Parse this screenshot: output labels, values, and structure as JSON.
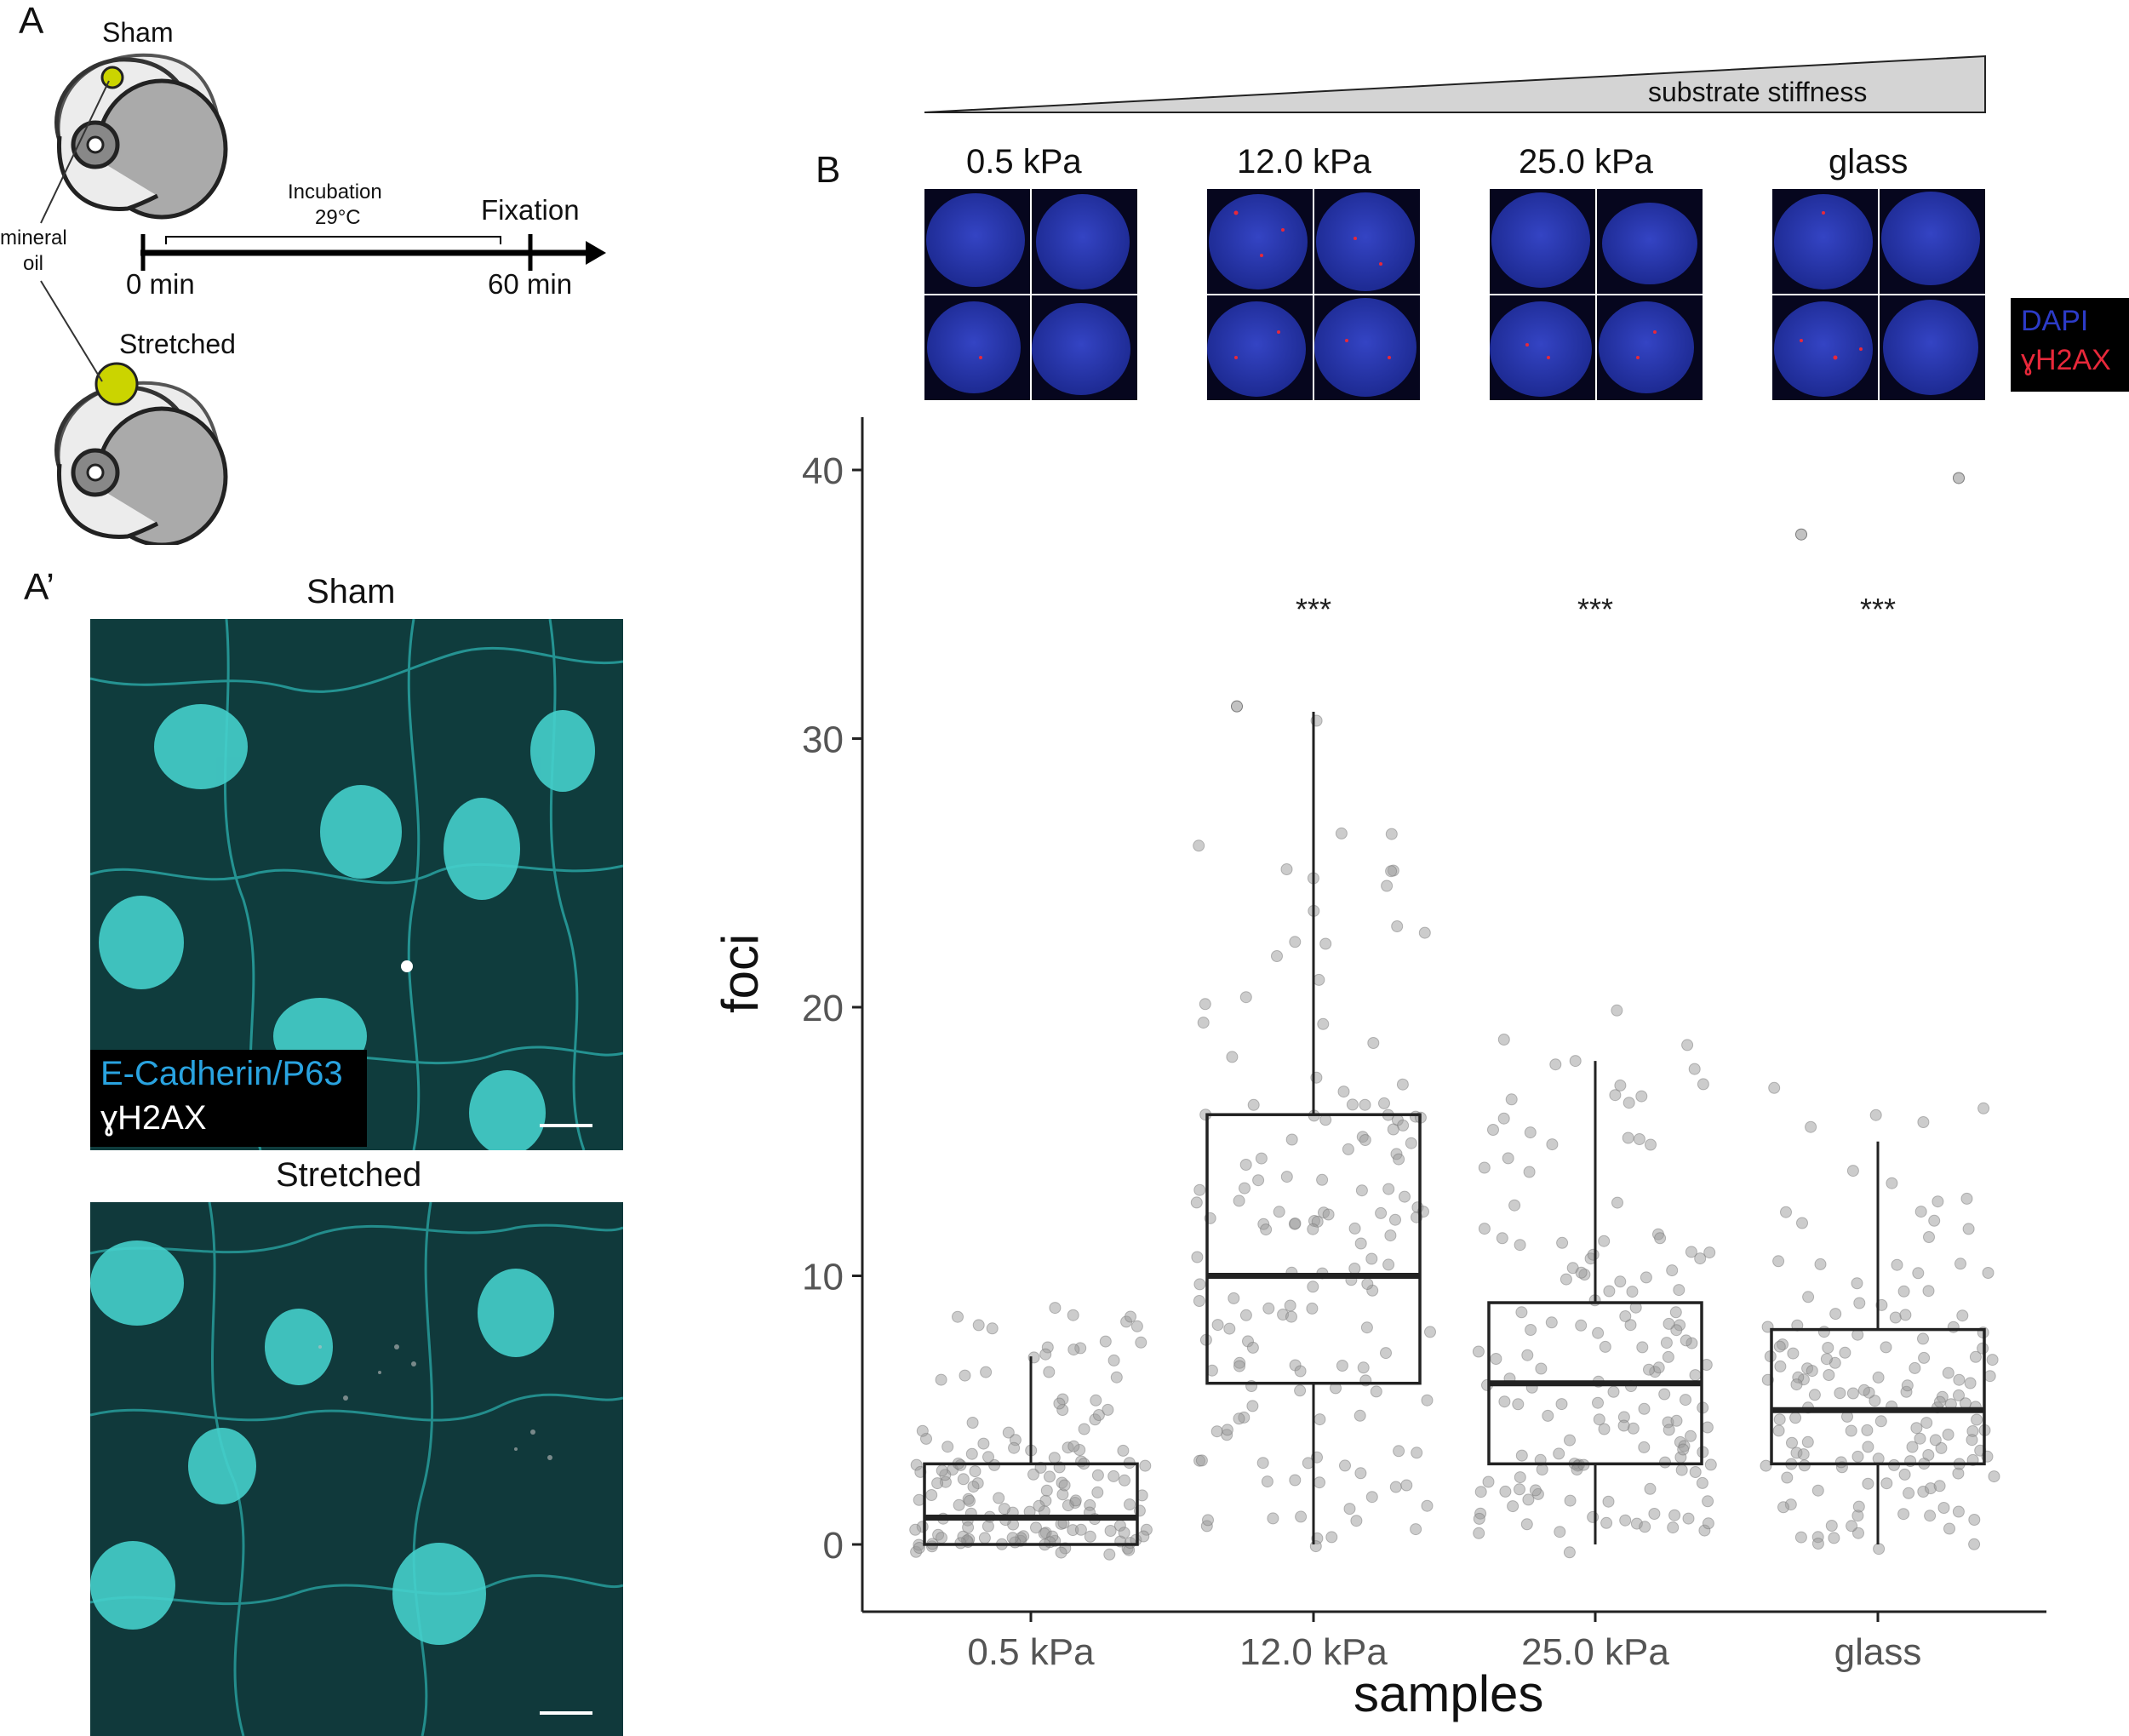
{
  "panel_a": {
    "letter": "A",
    "sham_label": "Sham",
    "stretched_label": "Stretched",
    "oil_label_line1": "mineral",
    "oil_label_line2": "oil",
    "incubation_line1": "Incubation",
    "incubation_line2": "29°C",
    "fixation_label": "Fixation",
    "t0_label": "0 min",
    "t60_label": "60 min"
  },
  "panel_a_prime": {
    "letter": "A’",
    "sham_title": "Sham",
    "stretched_title": "Stretched",
    "legend_line1": "E-Cadherin/P63",
    "legend_line2": "ɣH2AX",
    "legend_color1": "#29a3e0",
    "legend_color2": "#ffffff",
    "image_color": "#0f3f40",
    "nucleus_color": "#46d1cc"
  },
  "panel_b": {
    "letter": "B",
    "gradient_label": "substrate stiffness",
    "image_labels": [
      "0.5 kPa",
      "12.0 kPa",
      "25.0 kPa",
      "glass"
    ],
    "legend_dapi": "DAPI",
    "legend_h2ax": "ɣH2AX",
    "dapi_color": "#2c3bc8",
    "h2ax_color": "#e8283a"
  },
  "chart_data": {
    "type": "box",
    "xlabel": "samples",
    "ylabel": "foci",
    "categories": [
      "0.5 kPa",
      "12.0 kPa",
      "25.0 kPa",
      "glass"
    ],
    "ylim": [
      -2.5,
      42
    ],
    "yticks": [
      0,
      10,
      20,
      30,
      40
    ],
    "grid": false,
    "significance": [
      "",
      "***",
      "***",
      "***"
    ],
    "boxes": [
      {
        "category": "0.5 kPa",
        "whisker_low": 0,
        "q1": 0,
        "median": 1,
        "q3": 3,
        "whisker_high": 7
      },
      {
        "category": "12.0 kPa",
        "whisker_low": 0,
        "q1": 6,
        "median": 10,
        "q3": 16,
        "whisker_high": 31
      },
      {
        "category": "25.0 kPa",
        "whisker_low": 0,
        "q1": 3,
        "median": 6,
        "q3": 9,
        "whisker_high": 18
      },
      {
        "category": "glass",
        "whisker_low": 0,
        "q1": 3,
        "median": 5,
        "q3": 8,
        "whisker_high": 15
      }
    ],
    "outliers": [
      {
        "category": "12.0 kPa",
        "values": [
          31.2
        ]
      },
      {
        "category": "glass",
        "values": [
          37.6,
          39.7
        ]
      }
    ],
    "point_color": "#9a9a9a"
  }
}
